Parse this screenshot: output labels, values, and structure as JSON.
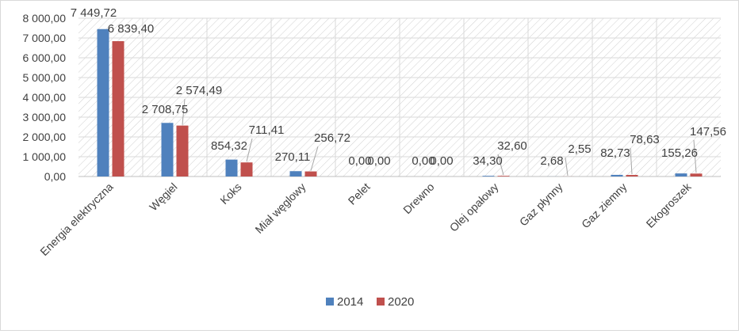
{
  "chart_data": {
    "type": "bar",
    "title": "",
    "xlabel": "",
    "ylabel": "",
    "ylim": [
      0,
      8000
    ],
    "y_ticks": [
      "0,00",
      "1 000,00",
      "2 000,00",
      "3 000,00",
      "4 000,00",
      "5 000,00",
      "6 000,00",
      "7 000,00",
      "8 000,00"
    ],
    "grid": true,
    "grid_style": "diagonal-hatch",
    "legend_position": "bottom",
    "categories": [
      "Energia elektryczna",
      "Węgiel",
      "Koks",
      "Miał węglowy",
      "Pelet",
      "Drewno",
      "Olej opałowy",
      "Gaz płynny",
      "Gaz ziemny",
      "Ekogroszek"
    ],
    "series": [
      {
        "name": "2014",
        "color": "#4f81bd",
        "values": [
          7449.72,
          2708.75,
          854.32,
          270.11,
          0.0,
          0.0,
          34.3,
          2.68,
          82.73,
          155.26
        ],
        "labels": [
          "7 449,72",
          "2 708,75",
          "854,32",
          "270,11",
          "0,00",
          "0,00",
          "34,30",
          "2,68",
          "82,73",
          "155,26"
        ]
      },
      {
        "name": "2020",
        "color": "#c0504d",
        "values": [
          6839.4,
          2574.49,
          711.41,
          256.72,
          0.0,
          0.0,
          32.6,
          2.55,
          78.63,
          147.56
        ],
        "labels": [
          "6 839,40",
          "2 574,49",
          "711,41",
          "256,72",
          "0,00",
          "0,00",
          "32,60",
          "2,55",
          "78,63",
          "147,56"
        ]
      }
    ]
  }
}
